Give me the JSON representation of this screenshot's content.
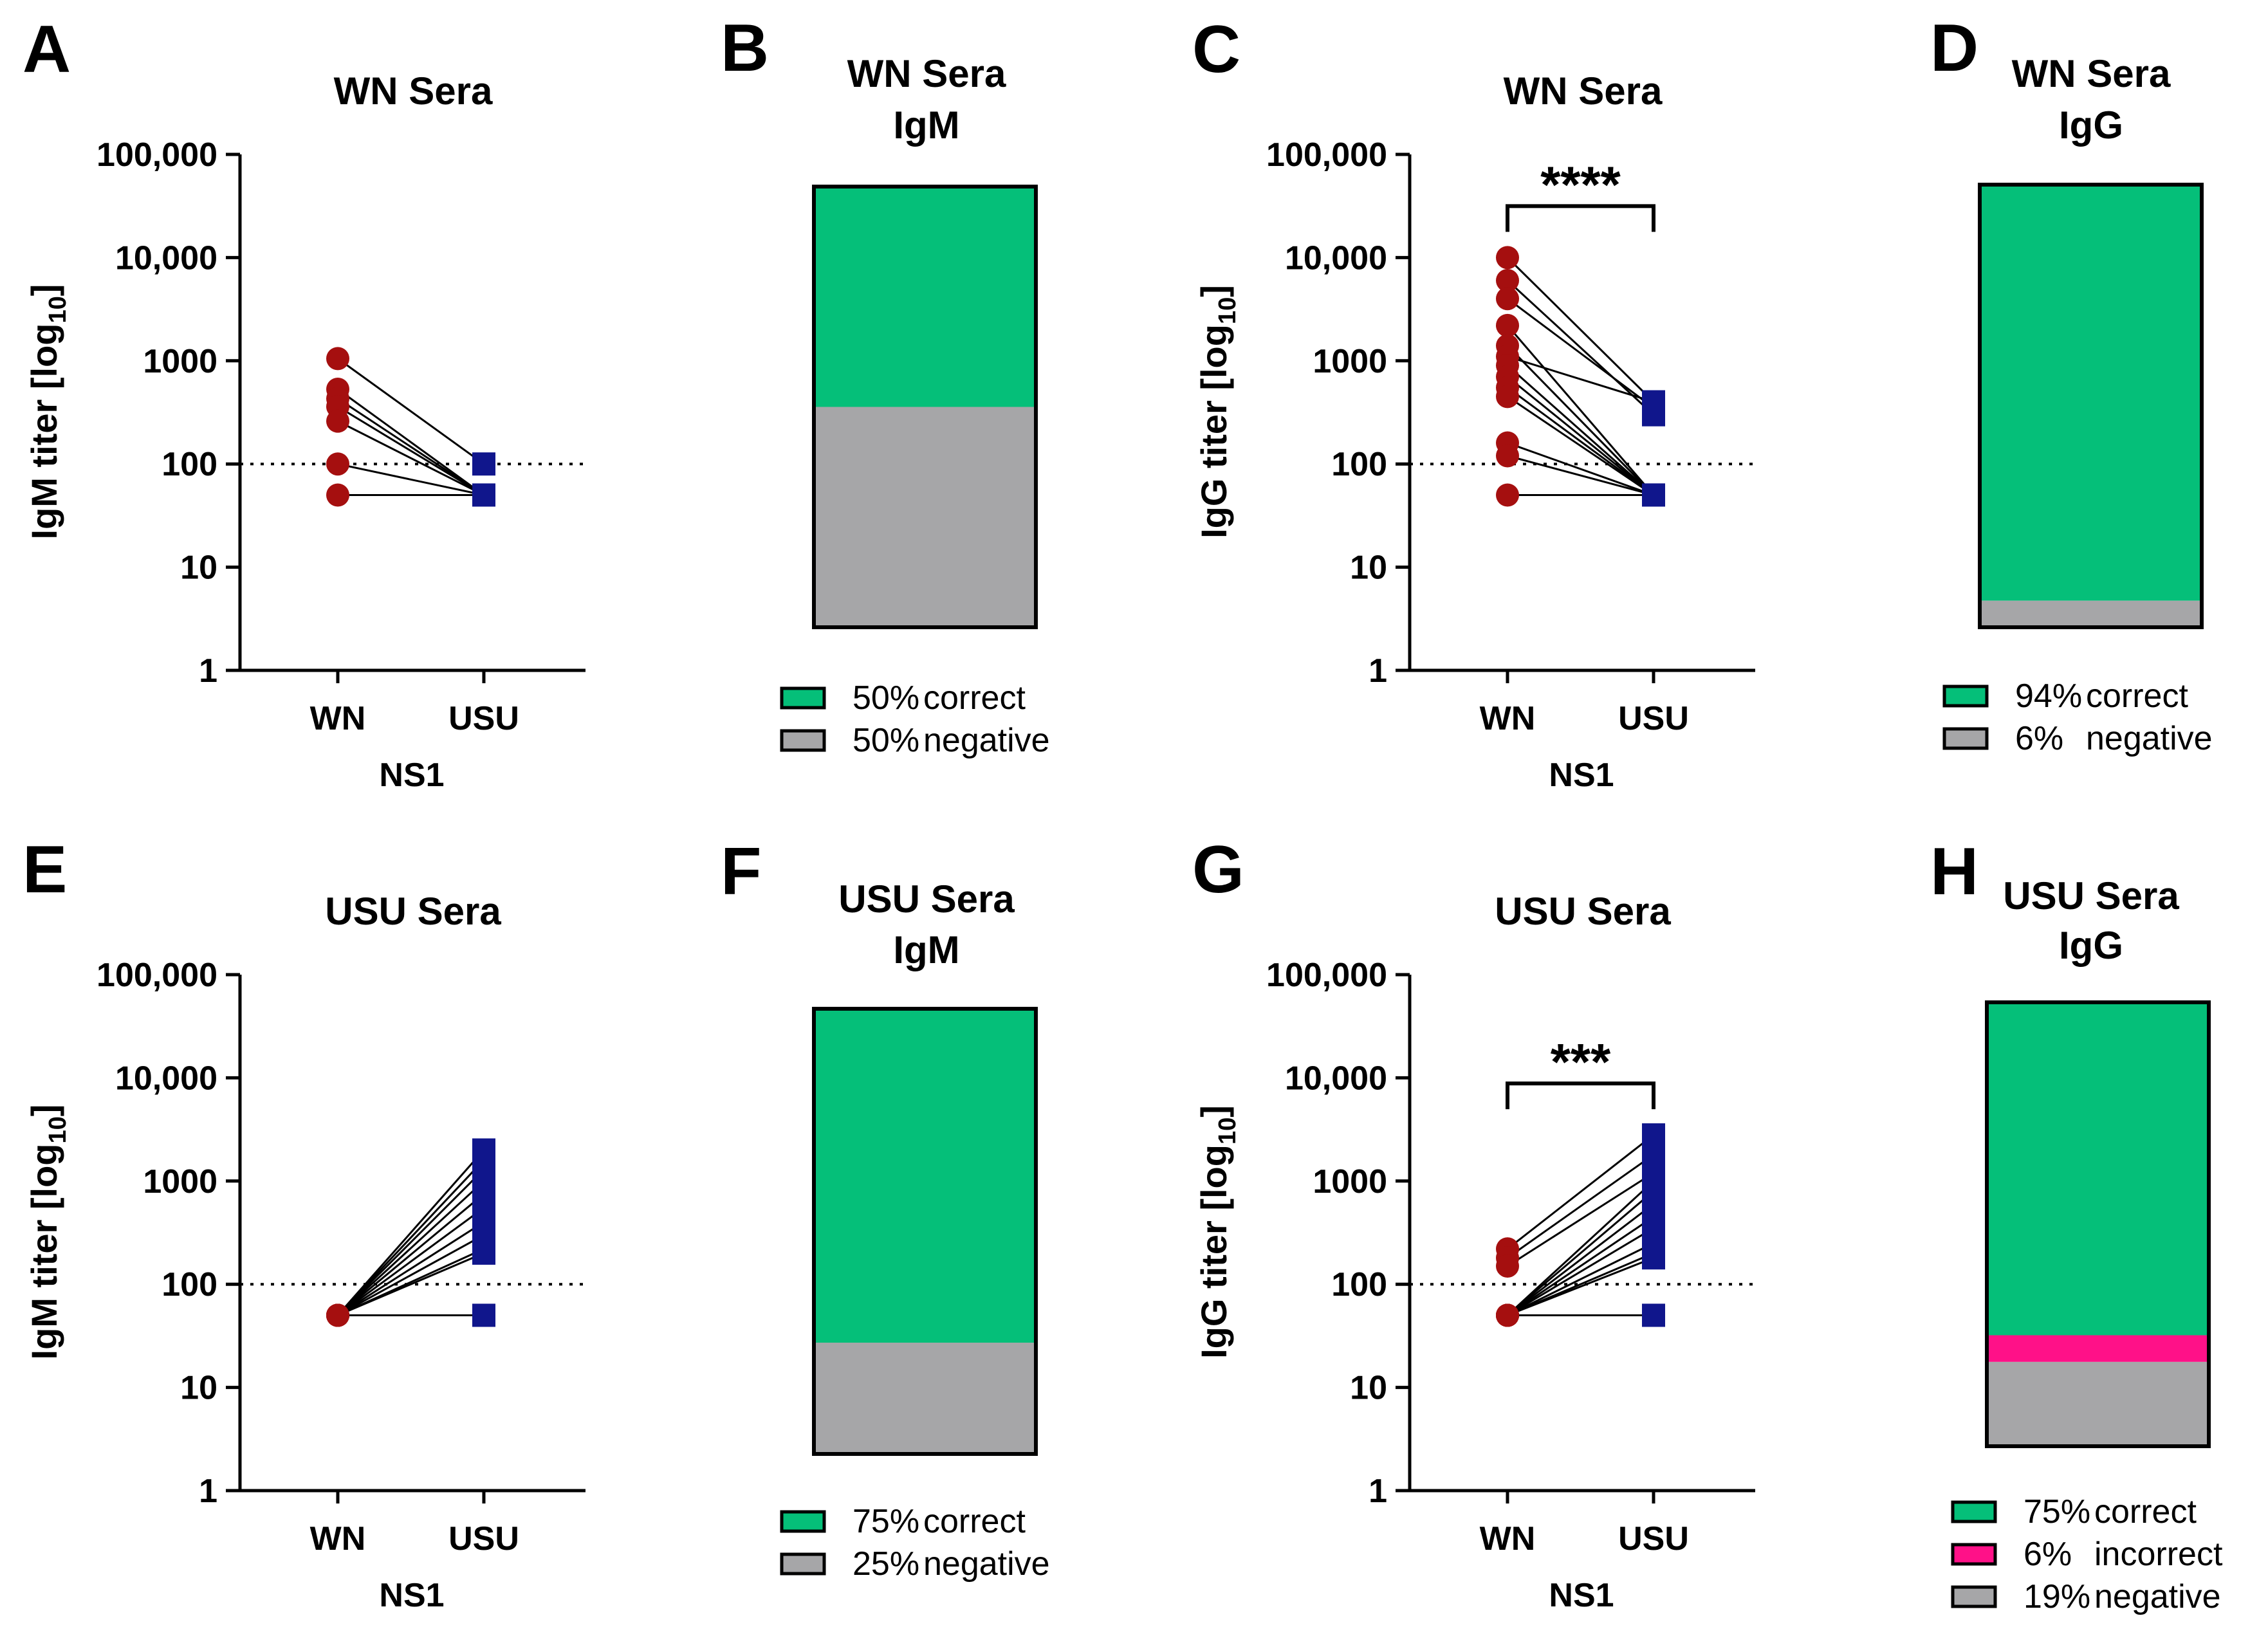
{
  "colors": {
    "wn_marker": "#A50F0F",
    "usu_marker": "#10168C",
    "correct": "#05BF79",
    "negative": "#A6A6A8",
    "incorrect": "#FF1188",
    "line": "#000000"
  },
  "chart_data": [
    {
      "id": "A",
      "panel_label": "A",
      "type": "scatter",
      "title": "WN Sera",
      "ylabel_main": "IgM titer [log",
      "ylabel_sub": "10",
      "ylabel_end": "]",
      "xlabel": "NS1",
      "categories": [
        "WN",
        "USU"
      ],
      "yscale": "log",
      "ylim": [
        1,
        100000
      ],
      "yticks": [
        1,
        10,
        100,
        1000,
        10000,
        100000
      ],
      "ytick_labels": [
        "1",
        "10",
        "100",
        "1000",
        "10,000",
        "100,000"
      ],
      "cutoff": 100,
      "pairs": [
        [
          1050,
          100
        ],
        [
          530,
          50
        ],
        [
          430,
          50
        ],
        [
          360,
          50
        ],
        [
          260,
          50
        ],
        [
          100,
          50
        ],
        [
          50,
          50
        ]
      ]
    },
    {
      "id": "B",
      "panel_label": "B",
      "type": "bar",
      "title_lines": [
        "WN Sera",
        "IgM"
      ],
      "segments": [
        {
          "key": "correct",
          "value": 50,
          "percent_label": "50%",
          "text": "correct"
        },
        {
          "key": "negative",
          "value": 50,
          "percent_label": "50%",
          "text": "negative"
        }
      ]
    },
    {
      "id": "C",
      "panel_label": "C",
      "type": "scatter",
      "title": "WN Sera",
      "ylabel_main": "IgG titer [log",
      "ylabel_sub": "10",
      "ylabel_end": "]",
      "xlabel": "NS1",
      "categories": [
        "WN",
        "USU"
      ],
      "yscale": "log",
      "ylim": [
        1,
        100000
      ],
      "yticks": [
        1,
        10,
        100,
        1000,
        10000,
        100000
      ],
      "ytick_labels": [
        "1",
        "10",
        "100",
        "1000",
        "10,000",
        "100,000"
      ],
      "cutoff": 100,
      "significance": "****",
      "pairs": [
        [
          10000,
          400
        ],
        [
          6000,
          300
        ],
        [
          4000,
          350
        ],
        [
          2200,
          50
        ],
        [
          1400,
          50
        ],
        [
          1100,
          400
        ],
        [
          900,
          50
        ],
        [
          700,
          50
        ],
        [
          550,
          50
        ],
        [
          450,
          50
        ],
        [
          160,
          50
        ],
        [
          120,
          50
        ],
        [
          50,
          50
        ]
      ]
    },
    {
      "id": "D",
      "panel_label": "D",
      "type": "bar",
      "title_lines": [
        "WN Sera",
        "IgG"
      ],
      "segments": [
        {
          "key": "correct",
          "value": 94,
          "percent_label": "94%",
          "text": "correct"
        },
        {
          "key": "negative",
          "value": 6,
          "percent_label": "6%",
          "text": "negative"
        }
      ]
    },
    {
      "id": "E",
      "panel_label": "E",
      "type": "scatter",
      "title": "USU Sera",
      "ylabel_main": "IgM titer [log",
      "ylabel_sub": "10",
      "ylabel_end": "]",
      "xlabel": "NS1",
      "categories": [
        "WN",
        "USU"
      ],
      "yscale": "log",
      "ylim": [
        1,
        100000
      ],
      "yticks": [
        1,
        10,
        100,
        1000,
        10000,
        100000
      ],
      "ytick_labels": [
        "1",
        "10",
        "100",
        "1000",
        "10,000",
        "100,000"
      ],
      "cutoff": 100,
      "pairs": [
        [
          50,
          2000
        ],
        [
          50,
          1600
        ],
        [
          50,
          1300
        ],
        [
          50,
          1000
        ],
        [
          50,
          750
        ],
        [
          50,
          550
        ],
        [
          50,
          400
        ],
        [
          50,
          300
        ],
        [
          50,
          220
        ],
        [
          50,
          200
        ],
        [
          50,
          50
        ]
      ]
    },
    {
      "id": "F",
      "panel_label": "F",
      "type": "bar",
      "title_lines": [
        "USU Sera",
        "IgM"
      ],
      "segments": [
        {
          "key": "correct",
          "value": 75,
          "percent_label": "75%",
          "text": "correct"
        },
        {
          "key": "negative",
          "value": 25,
          "percent_label": "25%",
          "text": "negative"
        }
      ]
    },
    {
      "id": "G",
      "panel_label": "G",
      "type": "scatter",
      "title": "USU Sera",
      "ylabel_main": "IgG titer [log",
      "ylabel_sub": "10",
      "ylabel_end": "]",
      "xlabel": "NS1",
      "categories": [
        "WN",
        "USU"
      ],
      "yscale": "log",
      "ylim": [
        1,
        100000
      ],
      "yticks": [
        1,
        10,
        100,
        1000,
        10000,
        100000
      ],
      "ytick_labels": [
        "1",
        "10",
        "100",
        "1000",
        "10,000",
        "100,000"
      ],
      "cutoff": 100,
      "significance": "***",
      "pairs": [
        [
          220,
          2800
        ],
        [
          180,
          1800
        ],
        [
          150,
          1200
        ],
        [
          50,
          1000
        ],
        [
          50,
          800
        ],
        [
          50,
          600
        ],
        [
          50,
          450
        ],
        [
          50,
          350
        ],
        [
          50,
          250
        ],
        [
          50,
          200
        ],
        [
          50,
          180
        ],
        [
          50,
          50
        ],
        [
          50,
          50
        ]
      ]
    },
    {
      "id": "H",
      "panel_label": "H",
      "type": "bar",
      "title_lines": [
        "USU Sera",
        "IgG"
      ],
      "segments": [
        {
          "key": "correct",
          "value": 75,
          "percent_label": "75%",
          "text": "correct"
        },
        {
          "key": "incorrect",
          "value": 6,
          "percent_label": "6%",
          "text": "incorrect"
        },
        {
          "key": "negative",
          "value": 19,
          "percent_label": "19%",
          "text": "negative"
        }
      ]
    }
  ]
}
